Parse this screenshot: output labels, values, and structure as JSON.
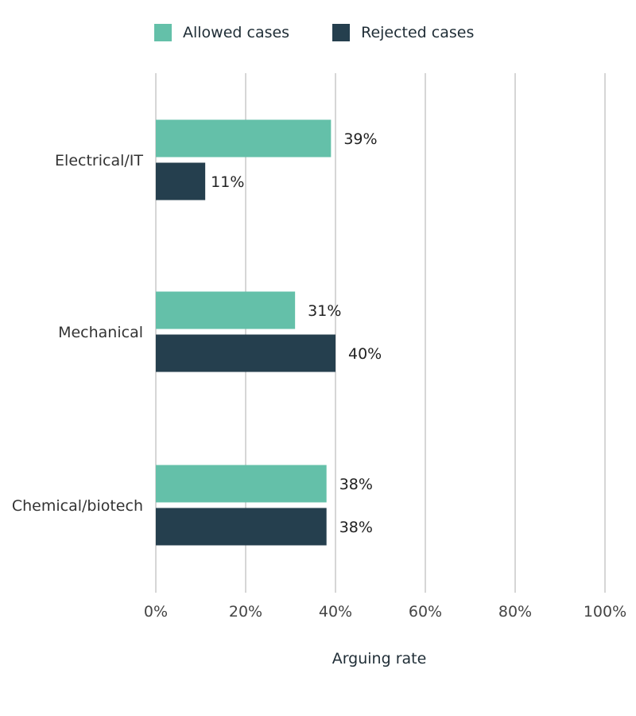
{
  "colors": {
    "allowed": "#64c0a9",
    "rejected": "#253f4e",
    "grid": "#c8c8c8"
  },
  "legend": {
    "allowed_label": "Allowed cases",
    "rejected_label": "Rejected cases"
  },
  "chart_data": {
    "type": "bar",
    "orientation": "horizontal",
    "categories": [
      "Electrical/IT",
      "Mechanical",
      "Chemical/biotech"
    ],
    "series": [
      {
        "name": "Allowed cases",
        "values": [
          39,
          31,
          38
        ],
        "labels": [
          "39%",
          "31%",
          "38%"
        ]
      },
      {
        "name": "Rejected cases",
        "values": [
          11,
          40,
          38
        ],
        "labels": [
          "11%",
          "40%",
          "38%"
        ]
      }
    ],
    "xlim": [
      0,
      100
    ],
    "xticks": [
      0,
      20,
      40,
      60,
      80,
      100
    ],
    "xtick_labels": [
      "0%",
      "20%",
      "40%",
      "60%",
      "80%",
      "100%"
    ],
    "xlabel": "Arguing rate",
    "grid": true,
    "legend_position": "top"
  }
}
